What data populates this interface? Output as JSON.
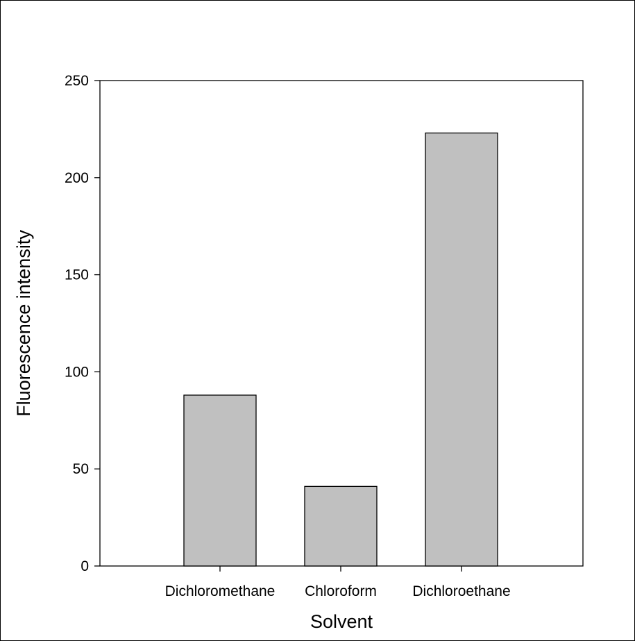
{
  "chart_data": {
    "type": "bar",
    "title": "",
    "xlabel": "Solvent",
    "ylabel": "Fluorescence intensity",
    "categories": [
      "Dichloromethane",
      "Chloroform",
      "Dichloroethane"
    ],
    "values": [
      88,
      41,
      223
    ],
    "ylim": [
      0,
      250
    ],
    "yticks": [
      0,
      50,
      100,
      150,
      200,
      250
    ],
    "grid": false,
    "legend": "none",
    "colors": {
      "bar_fill": "#c0c0c0",
      "bar_stroke": "#000000",
      "axis": "#000000"
    }
  }
}
